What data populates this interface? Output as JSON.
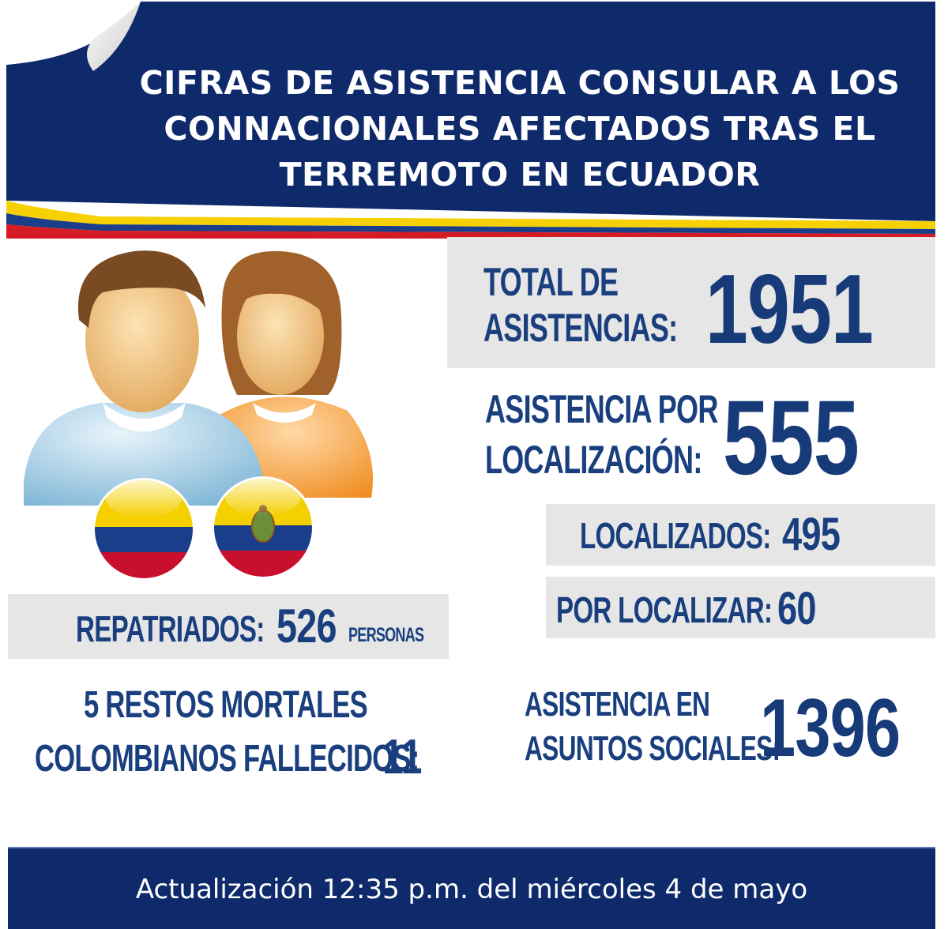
{
  "header": {
    "title_lines": [
      "CIFRAS DE ASISTENCIA CONSULAR A LOS",
      "CONNACIONALES AFECTADOS TRAS EL",
      "TERREMOTO EN ECUADOR"
    ]
  },
  "illustration": {
    "icon": "people-icon",
    "flags": [
      "colombia-flag-icon",
      "ecuador-flag-icon"
    ]
  },
  "total": {
    "label_line1": "TOTAL DE",
    "label_line2": "ASISTENCIAS:",
    "value": "1951"
  },
  "localizacion": {
    "label_line1": "ASISTENCIA POR",
    "label_line2": "LOCALIZACIÓN:",
    "value": "555"
  },
  "localizados": {
    "label": "LOCALIZADOS:",
    "value": "495"
  },
  "por_localizar": {
    "label": "POR LOCALIZAR:",
    "value": "60"
  },
  "repatriados": {
    "label": "REPATRIADOS:",
    "value": "526",
    "unit": "PERSONAS"
  },
  "restos": {
    "line1": "5 RESTOS MORTALES",
    "label": "COLOMBIANOS FALLECIDOS:",
    "value": "11"
  },
  "sociales": {
    "label_line1": "ASISTENCIA EN",
    "label_line2": "ASUNTOS SOCIALES:",
    "value": "1396"
  },
  "footer": {
    "text": "Actualización 12:35 p.m. del miércoles 4 de mayo"
  },
  "colors": {
    "navy": "#0f2a6b",
    "text_blue": "#1a3f7f",
    "panel_gray": "#e6e6e6",
    "yellow": "#f6d000",
    "red": "#d51b24"
  }
}
